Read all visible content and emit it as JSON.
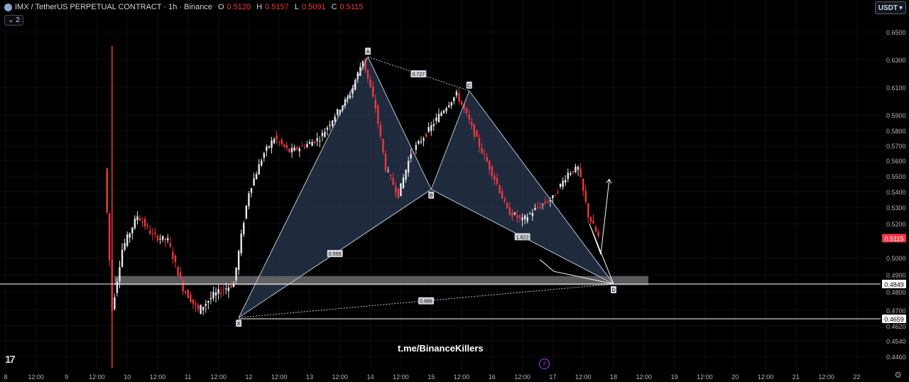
{
  "header": {
    "symbol": "IMX / TetherUS PERPETUAL CONTRACT · 1h · Binance",
    "ohlc": [
      {
        "k": "O",
        "v": "0.5120"
      },
      {
        "k": "H",
        "v": "0.5157"
      },
      {
        "k": "L",
        "v": "0.5091"
      },
      {
        "k": "C",
        "v": "0.5115"
      }
    ],
    "layers_count": "2",
    "currency": "USDT"
  },
  "watermark": "t.me/BinanceKillers",
  "colors": {
    "background": "#000000",
    "up": "#e8e8e8",
    "down": "#f23645",
    "pattern_fill": "#2a3a52",
    "pattern_line": "#b8c4d6",
    "zone": "#6b6b6b",
    "price_tag_bg": "#f23645"
  },
  "chart_data": {
    "type": "candlestick",
    "title": "IMX / TetherUS PERPETUAL CONTRACT · 1h · Binance",
    "y_ticks": [
      "0.6500",
      "0.6300",
      "0.6100",
      "0.5900",
      "0.5800",
      "0.5700",
      "0.5600",
      "0.5500",
      "0.5400",
      "0.5300",
      "0.5200",
      "0.5000",
      "0.4900",
      "0.4800",
      "0.4700",
      "0.4620",
      "0.4540",
      "0.4460"
    ],
    "x_ticks": [
      "8",
      "12:00",
      "9",
      "12:00",
      "10",
      "12:00",
      "11",
      "12:00",
      "12",
      "12:00",
      "13",
      "12:00",
      "14",
      "12:00",
      "15",
      "12:00",
      "16",
      "12:00",
      "17",
      "12:00",
      "18",
      "12:00",
      "19",
      "12:00",
      "20",
      "12:00",
      "21",
      "12:00",
      "22"
    ],
    "current_price": "0.5115",
    "price_levels": [
      {
        "label": "0.4849",
        "value": 0.4849
      },
      {
        "label": "0.4659",
        "value": 0.4659
      }
    ],
    "support_zone": {
      "from": 0.4842,
      "to": 0.4893
    },
    "harmonic_pattern": {
      "points": [
        {
          "label": "X",
          "x": "Dec 11 20:00",
          "y": 0.4665
        },
        {
          "label": "A",
          "x": "Dec 13 23:00",
          "y": 0.632
        },
        {
          "label": "B",
          "x": "Dec 15 00:00",
          "y": 0.5415
        },
        {
          "label": "C",
          "x": "Dec 15 15:00",
          "y": 0.6075
        },
        {
          "label": "D",
          "x": "Dec 18 00:00",
          "y": 0.4849
        }
      ],
      "ratios": [
        {
          "label": "0.727",
          "between": "A-C"
        },
        {
          "label": "0.555",
          "between": "X-B"
        },
        {
          "label": "1.822",
          "between": "B-D"
        },
        {
          "label": "0.886",
          "between": "X-D"
        }
      ]
    },
    "projection_path": [
      0.499,
      0.492,
      0.4849,
      0.52,
      0.502,
      0.548
    ]
  }
}
